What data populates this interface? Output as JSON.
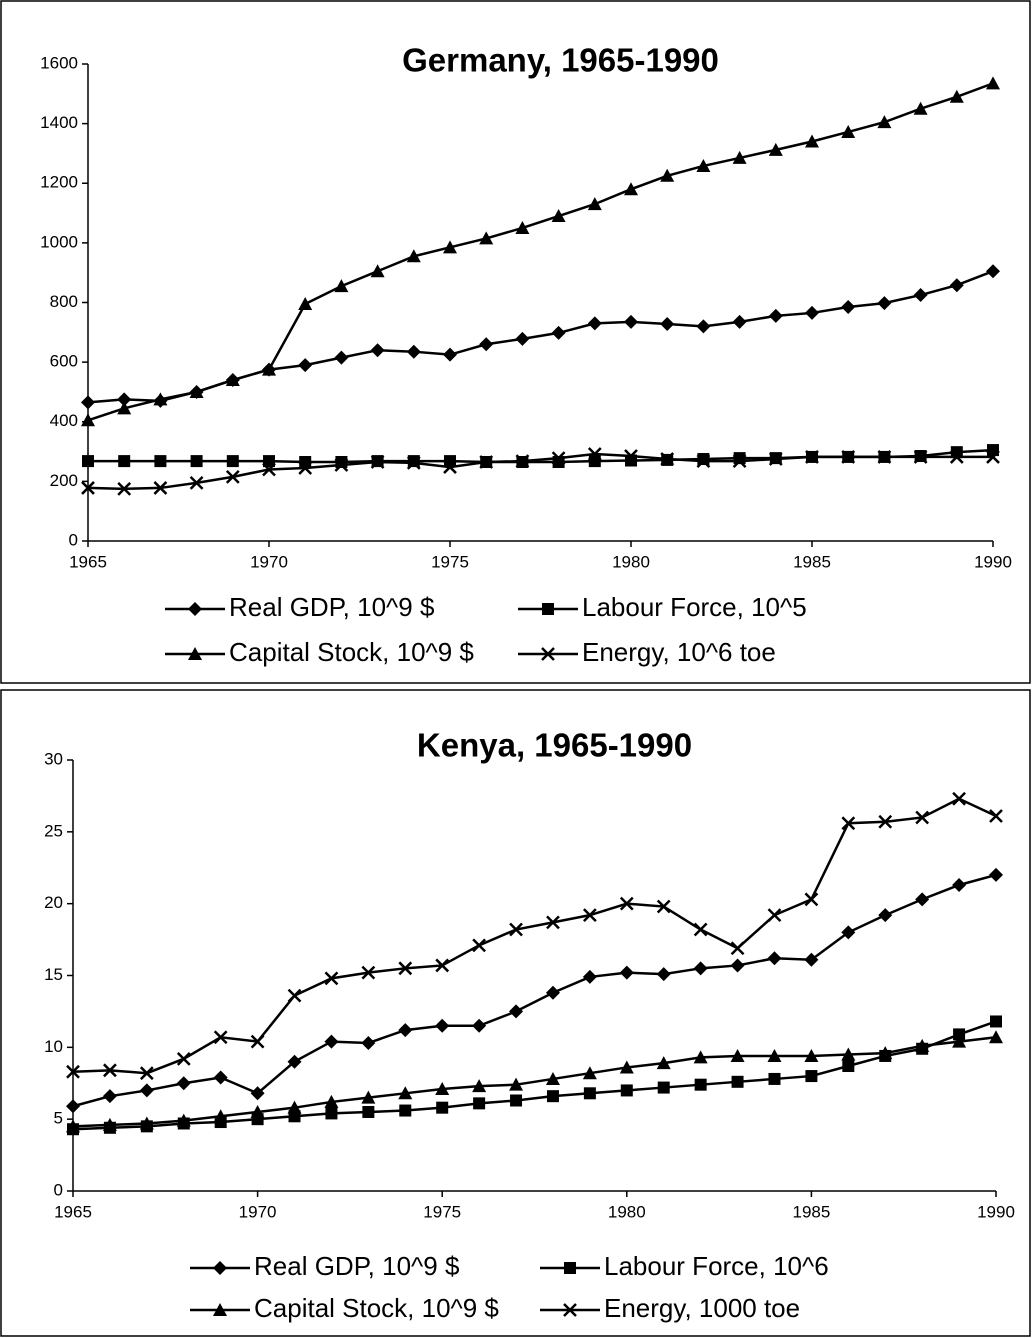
{
  "chart_data": [
    {
      "type": "line",
      "title": "Germany, 1965-1990",
      "x": [
        1965,
        1966,
        1967,
        1968,
        1969,
        1970,
        1971,
        1972,
        1973,
        1974,
        1975,
        1976,
        1977,
        1978,
        1979,
        1980,
        1981,
        1982,
        1983,
        1984,
        1985,
        1986,
        1987,
        1988,
        1989,
        1990
      ],
      "xlim": [
        1965,
        1990
      ],
      "xticks": [
        1965,
        1970,
        1975,
        1980,
        1985,
        1990
      ],
      "ylim": [
        0,
        1600
      ],
      "yticks": [
        0,
        200,
        400,
        600,
        800,
        1000,
        1200,
        1400,
        1600
      ],
      "series": [
        {
          "name": "Real GDP, 10^9 $",
          "color": "#000000",
          "marker": "diamond",
          "values": [
            465,
            475,
            470,
            500,
            540,
            575,
            590,
            615,
            640,
            635,
            625,
            660,
            678,
            698,
            730,
            735,
            728,
            720,
            735,
            755,
            765,
            785,
            798,
            825,
            858,
            905
          ]
        },
        {
          "name": "Labour Force, 10^5",
          "color": "#000000",
          "marker": "square",
          "values": [
            268,
            268,
            268,
            268,
            268,
            268,
            265,
            265,
            268,
            268,
            268,
            265,
            265,
            265,
            268,
            270,
            272,
            275,
            278,
            278,
            282,
            282,
            282,
            285,
            298,
            305
          ]
        },
        {
          "name": "Capital Stock, 10^9 $",
          "color": "#000000",
          "marker": "triangle",
          "values": [
            405,
            445,
            475,
            500,
            540,
            575,
            795,
            855,
            905,
            955,
            985,
            1015,
            1050,
            1090,
            1130,
            1180,
            1225,
            1258,
            1285,
            1312,
            1340,
            1372,
            1405,
            1450,
            1490,
            1535
          ]
        },
        {
          "name": "Energy, 10^6 toe",
          "color": "#000000",
          "marker": "x",
          "values": [
            178,
            175,
            178,
            195,
            215,
            240,
            245,
            255,
            265,
            262,
            248,
            265,
            268,
            278,
            292,
            285,
            275,
            268,
            268,
            275,
            282,
            282,
            282,
            282,
            282,
            282
          ]
        }
      ]
    },
    {
      "type": "line",
      "title": "Kenya, 1965-1990",
      "x": [
        1965,
        1966,
        1967,
        1968,
        1969,
        1970,
        1971,
        1972,
        1973,
        1974,
        1975,
        1976,
        1977,
        1978,
        1979,
        1980,
        1981,
        1982,
        1983,
        1984,
        1985,
        1986,
        1987,
        1988,
        1989,
        1990
      ],
      "xlim": [
        1965,
        1990
      ],
      "xticks": [
        1965,
        1970,
        1975,
        1980,
        1985,
        1990
      ],
      "ylim": [
        0,
        30
      ],
      "yticks": [
        0,
        5,
        10,
        15,
        20,
        25,
        30
      ],
      "series": [
        {
          "name": "Real GDP, 10^9 $",
          "color": "#000000",
          "marker": "diamond",
          "values": [
            5.9,
            6.6,
            7.0,
            7.5,
            7.9,
            6.8,
            9.0,
            10.4,
            10.3,
            11.2,
            11.5,
            11.5,
            12.5,
            13.8,
            14.9,
            15.2,
            15.1,
            15.5,
            15.7,
            16.2,
            16.1,
            18.0,
            19.2,
            20.3,
            21.3,
            22.0
          ]
        },
        {
          "name": "Labour Force, 10^6",
          "color": "#000000",
          "marker": "square",
          "values": [
            4.3,
            4.4,
            4.5,
            4.7,
            4.8,
            5.0,
            5.2,
            5.4,
            5.5,
            5.6,
            5.8,
            6.1,
            6.3,
            6.6,
            6.8,
            7.0,
            7.2,
            7.4,
            7.6,
            7.8,
            8.0,
            8.7,
            9.4,
            9.9,
            10.9,
            11.8
          ]
        },
        {
          "name": "Capital Stock, 10^9 $",
          "color": "#000000",
          "marker": "triangle",
          "values": [
            4.5,
            4.6,
            4.7,
            4.9,
            5.2,
            5.5,
            5.8,
            6.2,
            6.5,
            6.8,
            7.1,
            7.3,
            7.4,
            7.8,
            8.2,
            8.6,
            8.9,
            9.3,
            9.4,
            9.4,
            9.4,
            9.5,
            9.6,
            10.1,
            10.4,
            10.7
          ]
        },
        {
          "name": "Energy, 1000 toe",
          "color": "#000000",
          "marker": "x",
          "values": [
            8.3,
            8.4,
            8.2,
            9.2,
            10.7,
            10.4,
            13.6,
            14.8,
            15.2,
            15.5,
            15.7,
            17.1,
            18.2,
            18.7,
            19.2,
            20.0,
            19.8,
            18.2,
            16.9,
            19.2,
            20.3,
            25.6,
            25.7,
            26.0,
            27.3,
            26.1
          ]
        }
      ]
    }
  ]
}
